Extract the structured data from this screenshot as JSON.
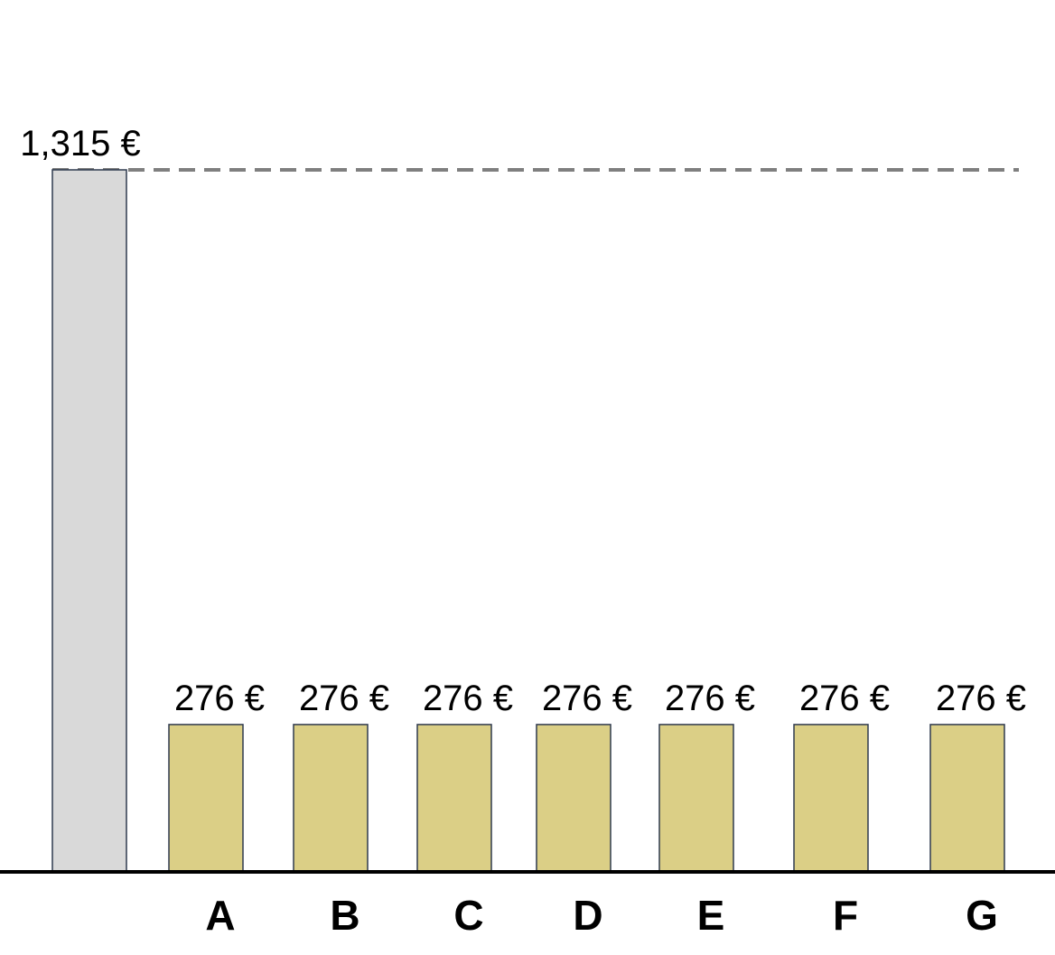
{
  "chart_data": {
    "type": "bar",
    "categories": [
      "",
      "A",
      "B",
      "C",
      "D",
      "E",
      "F",
      "G"
    ],
    "values": [
      1315,
      276,
      276,
      276,
      276,
      276,
      276,
      276
    ],
    "value_labels": [
      "1,315 €",
      "276 €",
      "276 €",
      "276 €",
      "276 €",
      "276 €",
      "276 €",
      "276 €"
    ],
    "unit": "€",
    "title": "",
    "xlabel": "",
    "ylabel": "",
    "ylim": [
      0,
      1315
    ],
    "grid": false,
    "legend": "none",
    "reference_line": {
      "value": 1315,
      "style": "dashed",
      "color": "#7f7f7f"
    },
    "colors": {
      "total_bar": "#d9d9d9",
      "item_bar": "#dbcf86",
      "bar_stroke": "#2f3a4f",
      "baseline": "#000000"
    }
  }
}
